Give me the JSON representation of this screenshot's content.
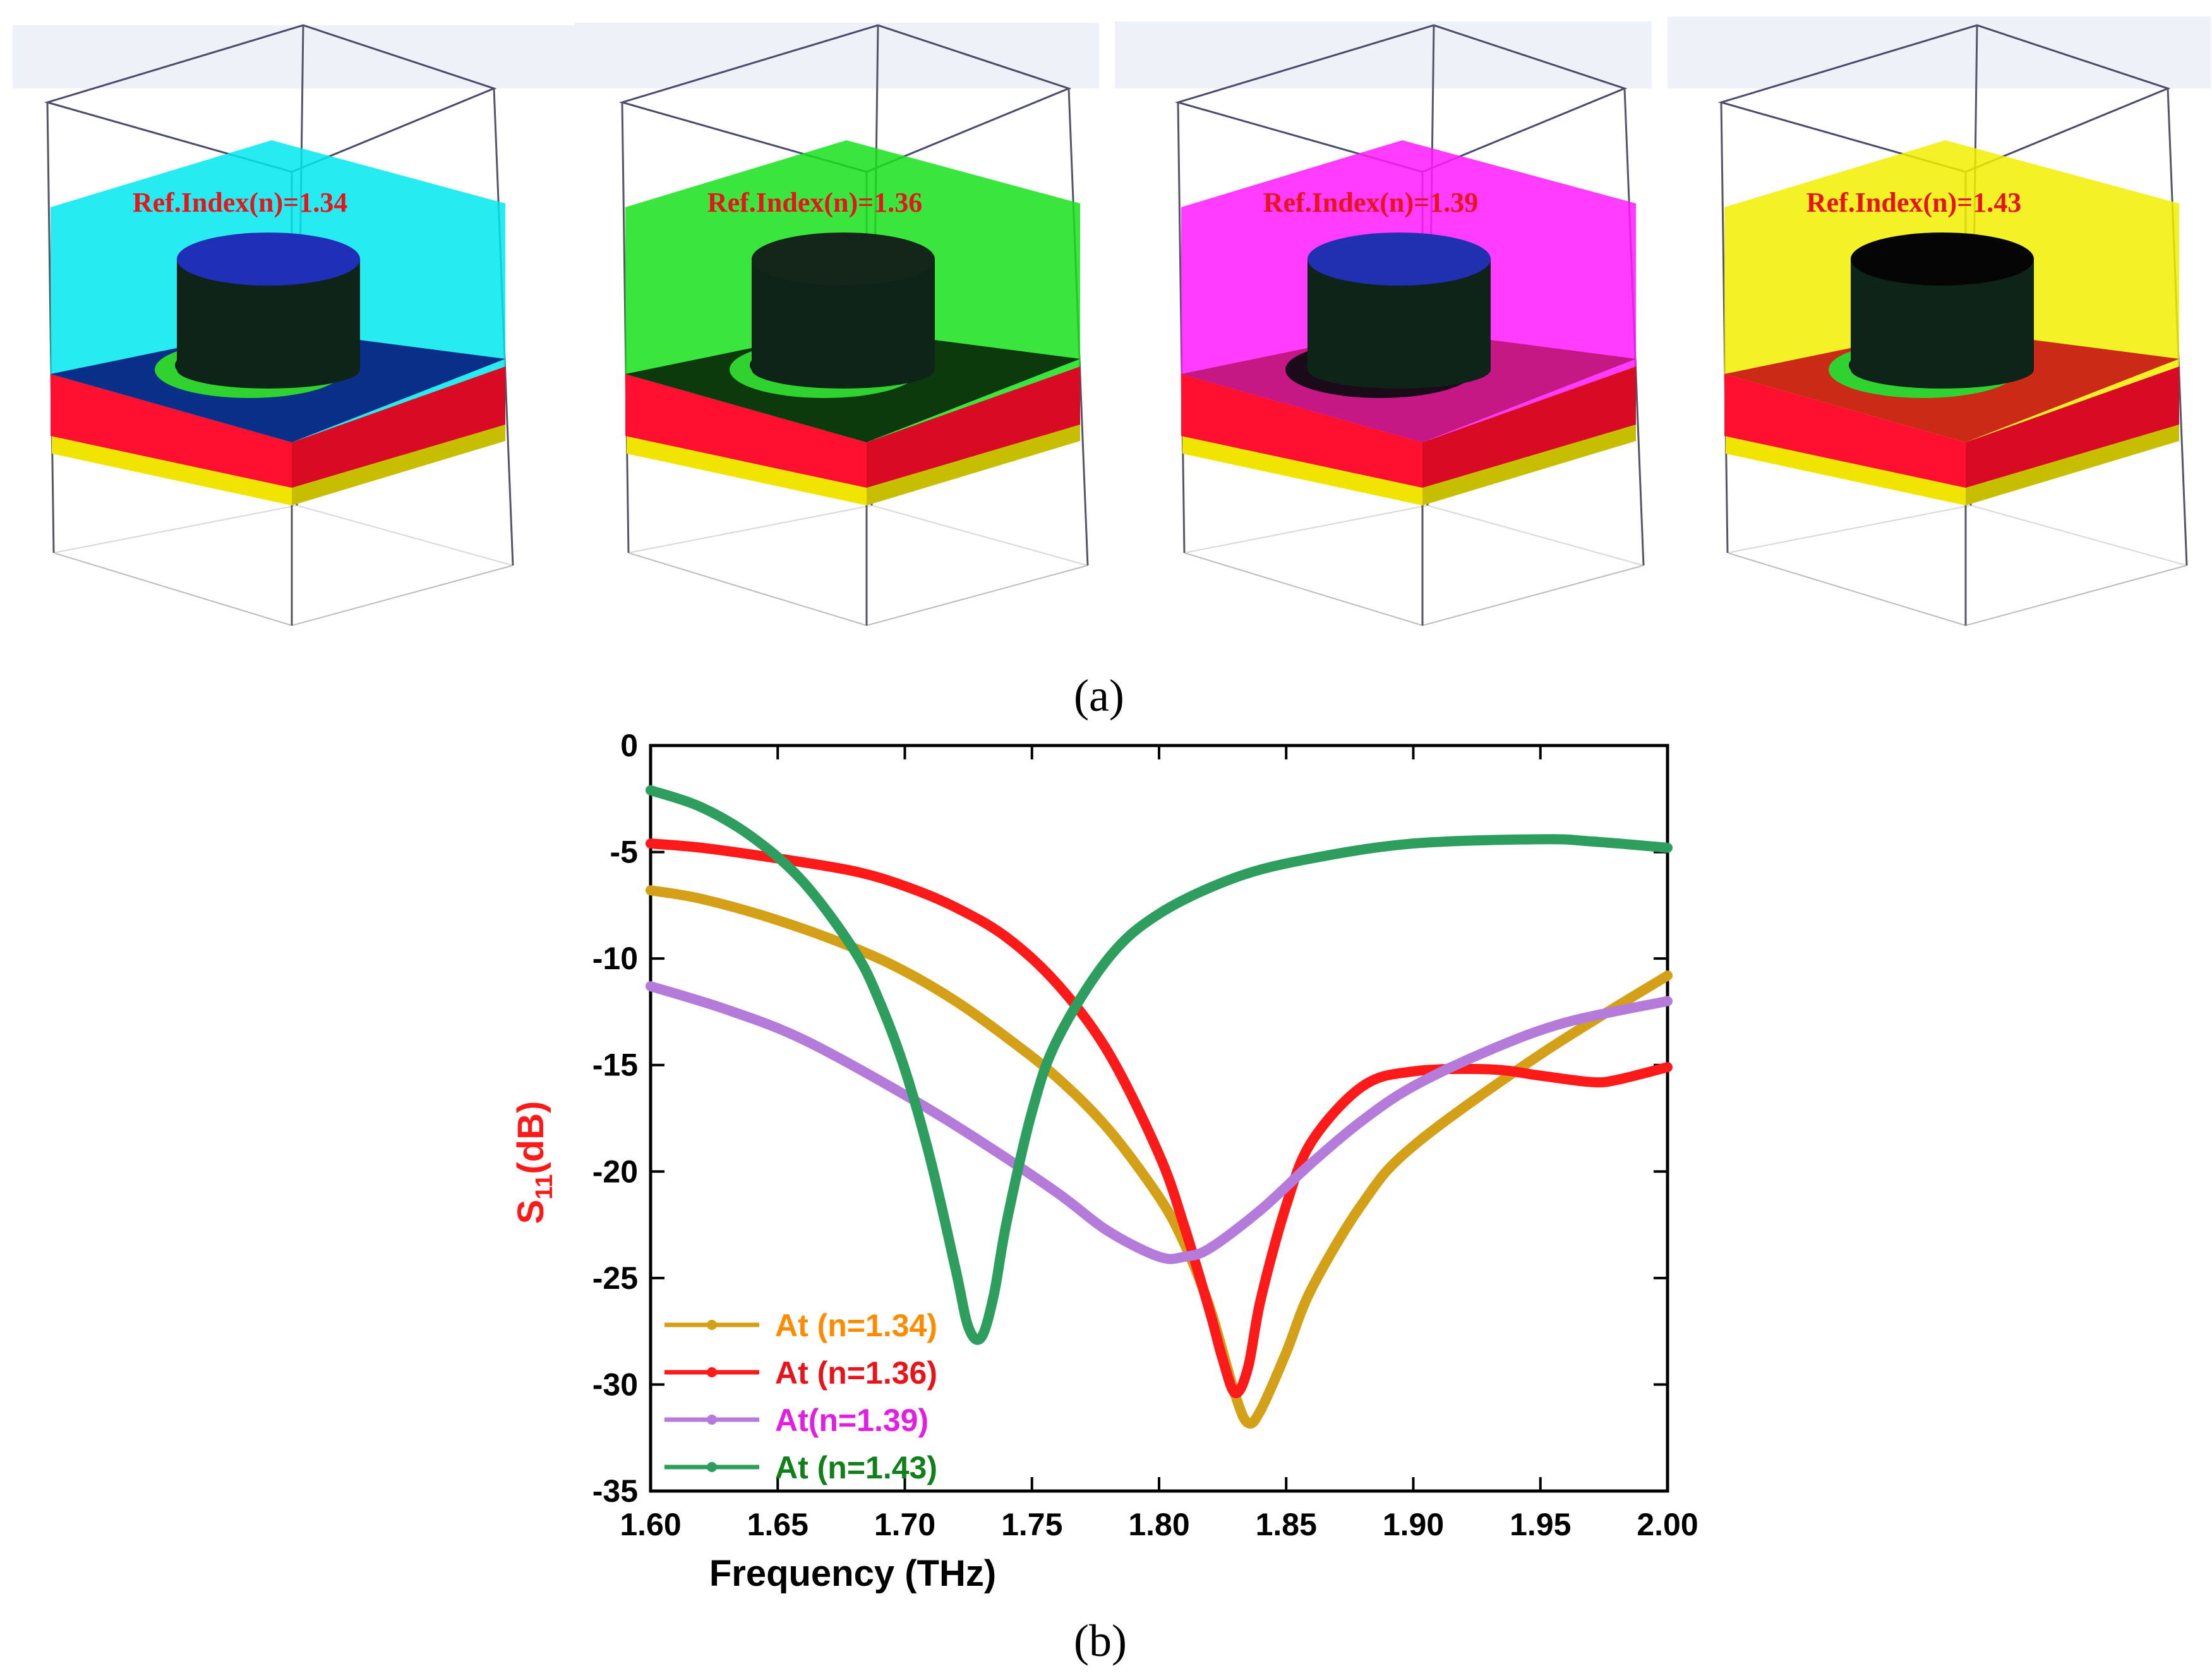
{
  "panel_a": {
    "label": "(a)",
    "cells": [
      {
        "ref_label": "Ref.Index(n)=1.34",
        "analyte_color": "#00e8ee",
        "base_top_color": "#0a1e80",
        "cap_color": "#1f2fb8",
        "ring_color": "#2fd22f"
      },
      {
        "ref_label": "Ref.Index(n)=1.36",
        "analyte_color": "#18e01c",
        "base_top_color": "#0c2a0c",
        "cap_color": "#14261a",
        "ring_color": "#2fd22f"
      },
      {
        "ref_label": "Ref.Index(n)=1.39",
        "analyte_color": "#ff1aff",
        "base_top_color": "#c0187a",
        "cap_color": "#2030b0",
        "ring_color": "#1a0a1a"
      },
      {
        "ref_label": "Ref.Index(n)=1.43",
        "analyte_color": "#f2ee00",
        "base_top_color": "#c81818",
        "cap_color": "#050505",
        "ring_color": "#2fd22f"
      }
    ],
    "substrate_color": "#ff1030",
    "ground_color": "#f0e400"
  },
  "panel_b": {
    "label": "(b)"
  },
  "chart_data": {
    "type": "line",
    "title": "",
    "xlabel": "Frequency (THz)",
    "ylabel": "S11(dB)",
    "ylabel_main": "S",
    "ylabel_sub": "11",
    "ylabel_unit": "(dB)",
    "xlim": [
      1.6,
      2.0
    ],
    "ylim": [
      -35,
      0
    ],
    "xticks": [
      "1.60",
      "1.65",
      "1.70",
      "1.75",
      "1.80",
      "1.85",
      "1.90",
      "1.95",
      "2.00"
    ],
    "yticks": [
      "0",
      "-5",
      "-10",
      "-15",
      "-20",
      "-25",
      "-30",
      "-35"
    ],
    "legend_position": "bottom-left",
    "series": [
      {
        "name": "At (n=1.34)",
        "color": "#d4a017",
        "legend_color": "#ff8c00",
        "x": [
          1.6,
          1.62,
          1.65,
          1.68,
          1.7,
          1.72,
          1.74,
          1.76,
          1.78,
          1.8,
          1.81,
          1.82,
          1.83,
          1.835,
          1.84,
          1.85,
          1.86,
          1.88,
          1.9,
          1.95,
          2.0
        ],
        "y": [
          -6.8,
          -7.2,
          -8.2,
          -9.5,
          -10.6,
          -12.0,
          -13.7,
          -15.6,
          -18.0,
          -21.2,
          -23.4,
          -26.4,
          -30.5,
          -31.8,
          -31.2,
          -28.5,
          -25.5,
          -21.5,
          -18.8,
          -14.5,
          -10.8
        ]
      },
      {
        "name": "At (n=1.36)",
        "color": "#ff1a1a",
        "legend_color": "#e8141c",
        "x": [
          1.6,
          1.62,
          1.65,
          1.68,
          1.7,
          1.72,
          1.74,
          1.76,
          1.78,
          1.8,
          1.81,
          1.82,
          1.825,
          1.83,
          1.835,
          1.84,
          1.85,
          1.86,
          1.88,
          1.9,
          1.93,
          1.95,
          1.97,
          1.98,
          2.0
        ],
        "y": [
          -4.6,
          -4.8,
          -5.3,
          -5.9,
          -6.6,
          -7.6,
          -9.0,
          -11.2,
          -14.4,
          -19.2,
          -22.6,
          -26.6,
          -28.8,
          -30.4,
          -29.2,
          -26.0,
          -21.6,
          -18.6,
          -16.0,
          -15.3,
          -15.2,
          -15.5,
          -15.8,
          -15.7,
          -15.1
        ]
      },
      {
        "name": "At(n=1.39)",
        "color": "#b57bdb",
        "legend_color": "#e21ee2",
        "x": [
          1.6,
          1.63,
          1.66,
          1.7,
          1.73,
          1.76,
          1.78,
          1.8,
          1.81,
          1.82,
          1.84,
          1.86,
          1.88,
          1.9,
          1.93,
          1.96,
          2.0
        ],
        "y": [
          -11.3,
          -12.4,
          -13.8,
          -16.4,
          -18.6,
          -21.0,
          -22.8,
          -24.0,
          -24.0,
          -23.6,
          -21.8,
          -19.6,
          -17.6,
          -16.0,
          -14.3,
          -13.0,
          -12.0
        ]
      },
      {
        "name": "At (n=1.43)",
        "color": "#2e9e5e",
        "legend_color": "#12801a",
        "x": [
          1.6,
          1.62,
          1.64,
          1.66,
          1.68,
          1.69,
          1.7,
          1.71,
          1.72,
          1.725,
          1.73,
          1.735,
          1.74,
          1.75,
          1.76,
          1.78,
          1.8,
          1.83,
          1.86,
          1.9,
          1.95,
          1.97,
          2.0
        ],
        "y": [
          -2.1,
          -2.9,
          -4.3,
          -6.4,
          -9.6,
          -12.0,
          -15.2,
          -19.4,
          -24.6,
          -27.3,
          -27.8,
          -25.8,
          -22.4,
          -17.2,
          -13.8,
          -10.0,
          -7.9,
          -6.2,
          -5.3,
          -4.6,
          -4.4,
          -4.5,
          -4.8
        ]
      }
    ]
  }
}
